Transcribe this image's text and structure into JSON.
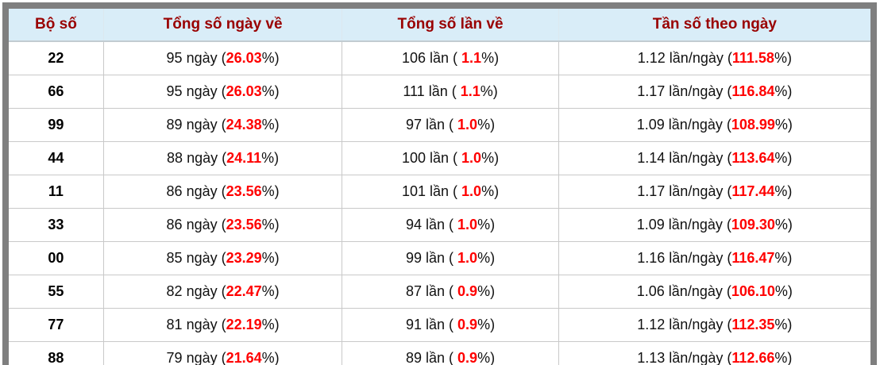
{
  "table": {
    "headers": [
      "Bộ số",
      "Tổng số ngày về",
      "Tổng số lần về",
      "Tần số theo ngày"
    ],
    "rows": [
      {
        "pair": "22",
        "days_prefix": "95 ngày (",
        "days_pct": "26.03",
        "days_suffix": "%)",
        "times_prefix": "106 lần ( ",
        "times_pct": "1.1",
        "times_suffix": "%)",
        "freq_prefix": "1.12 lần/ngày (",
        "freq_pct": "111.58",
        "freq_suffix": "%)"
      },
      {
        "pair": "66",
        "days_prefix": "95 ngày (",
        "days_pct": "26.03",
        "days_suffix": "%)",
        "times_prefix": "111 lần ( ",
        "times_pct": "1.1",
        "times_suffix": "%)",
        "freq_prefix": "1.17 lần/ngày (",
        "freq_pct": "116.84",
        "freq_suffix": "%)"
      },
      {
        "pair": "99",
        "days_prefix": "89 ngày (",
        "days_pct": "24.38",
        "days_suffix": "%)",
        "times_prefix": "97 lần ( ",
        "times_pct": "1.0",
        "times_suffix": "%)",
        "freq_prefix": "1.09 lần/ngày (",
        "freq_pct": "108.99",
        "freq_suffix": "%)"
      },
      {
        "pair": "44",
        "days_prefix": "88 ngày (",
        "days_pct": "24.11",
        "days_suffix": "%)",
        "times_prefix": "100 lần ( ",
        "times_pct": "1.0",
        "times_suffix": "%)",
        "freq_prefix": "1.14 lần/ngày (",
        "freq_pct": "113.64",
        "freq_suffix": "%)"
      },
      {
        "pair": "11",
        "days_prefix": "86 ngày (",
        "days_pct": "23.56",
        "days_suffix": "%)",
        "times_prefix": "101 lần ( ",
        "times_pct": "1.0",
        "times_suffix": "%)",
        "freq_prefix": "1.17 lần/ngày (",
        "freq_pct": "117.44",
        "freq_suffix": "%)"
      },
      {
        "pair": "33",
        "days_prefix": "86 ngày (",
        "days_pct": "23.56",
        "days_suffix": "%)",
        "times_prefix": "94 lần ( ",
        "times_pct": "1.0",
        "times_suffix": "%)",
        "freq_prefix": "1.09 lần/ngày (",
        "freq_pct": "109.30",
        "freq_suffix": "%)"
      },
      {
        "pair": "00",
        "days_prefix": "85 ngày (",
        "days_pct": "23.29",
        "days_suffix": "%)",
        "times_prefix": "99 lần ( ",
        "times_pct": "1.0",
        "times_suffix": "%)",
        "freq_prefix": "1.16 lần/ngày (",
        "freq_pct": "116.47",
        "freq_suffix": "%)"
      },
      {
        "pair": "55",
        "days_prefix": "82 ngày (",
        "days_pct": "22.47",
        "days_suffix": "%)",
        "times_prefix": "87 lần ( ",
        "times_pct": "0.9",
        "times_suffix": "%)",
        "freq_prefix": "1.06 lần/ngày (",
        "freq_pct": "106.10",
        "freq_suffix": "%)"
      },
      {
        "pair": "77",
        "days_prefix": "81 ngày (",
        "days_pct": "22.19",
        "days_suffix": "%)",
        "times_prefix": "91 lần ( ",
        "times_pct": "0.9",
        "times_suffix": "%)",
        "freq_prefix": "1.12 lần/ngày (",
        "freq_pct": "112.35",
        "freq_suffix": "%)"
      },
      {
        "pair": "88",
        "days_prefix": "79 ngày (",
        "days_pct": "21.64",
        "days_suffix": "%)",
        "times_prefix": "89 lần ( ",
        "times_pct": "0.9",
        "times_suffix": "%)",
        "freq_prefix": "1.13 lần/ngày (",
        "freq_pct": "112.66",
        "freq_suffix": "%)"
      }
    ],
    "colors": {
      "header_bg": "#d9edf8",
      "header_text": "#990000",
      "percent_text": "#ff0000",
      "outer_border": "#7f7f7f",
      "cell_border": "#c9c9c9"
    }
  }
}
